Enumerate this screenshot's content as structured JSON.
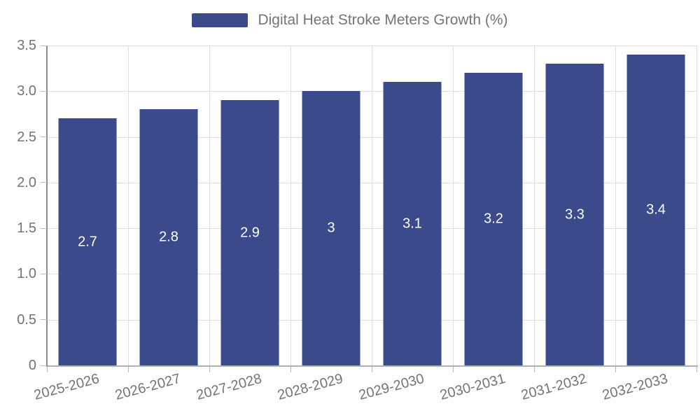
{
  "legend": {
    "label": "Digital Heat Stroke Meters Growth (%)"
  },
  "chart_data": {
    "type": "bar",
    "title": "",
    "categories": [
      "2025-2026",
      "2026-2027",
      "2027-2028",
      "2028-2029",
      "2029-2030",
      "2030-2031",
      "2031-2032",
      "2032-2033"
    ],
    "values": [
      2.7,
      2.8,
      2.9,
      3,
      3.1,
      3.2,
      3.3,
      3.4
    ],
    "bar_labels": [
      "2.7",
      "2.8",
      "2.9",
      "3",
      "3.1",
      "3.2",
      "3.3",
      "3.4"
    ],
    "series_name": "Digital Heat Stroke Meters Growth (%)",
    "xlabel": "",
    "ylabel": "",
    "ylim": [
      0,
      3.5
    ],
    "yticks": [
      0,
      0.5,
      1,
      1.5,
      2,
      2.5,
      3,
      3.5
    ],
    "ytick_labels": [
      "0",
      "0.5",
      "1.0",
      "1.5",
      "2.0",
      "2.5",
      "3.0",
      "3.5"
    ],
    "grid": true,
    "legend_position": "top-center",
    "colors": {
      "bar": "#3a4a8b",
      "grid": "#e0e0e0",
      "axis": "#8c8c8c",
      "tick": "#bdbdbd",
      "text": "#747474",
      "bar_label_text": "#ffffff"
    }
  }
}
